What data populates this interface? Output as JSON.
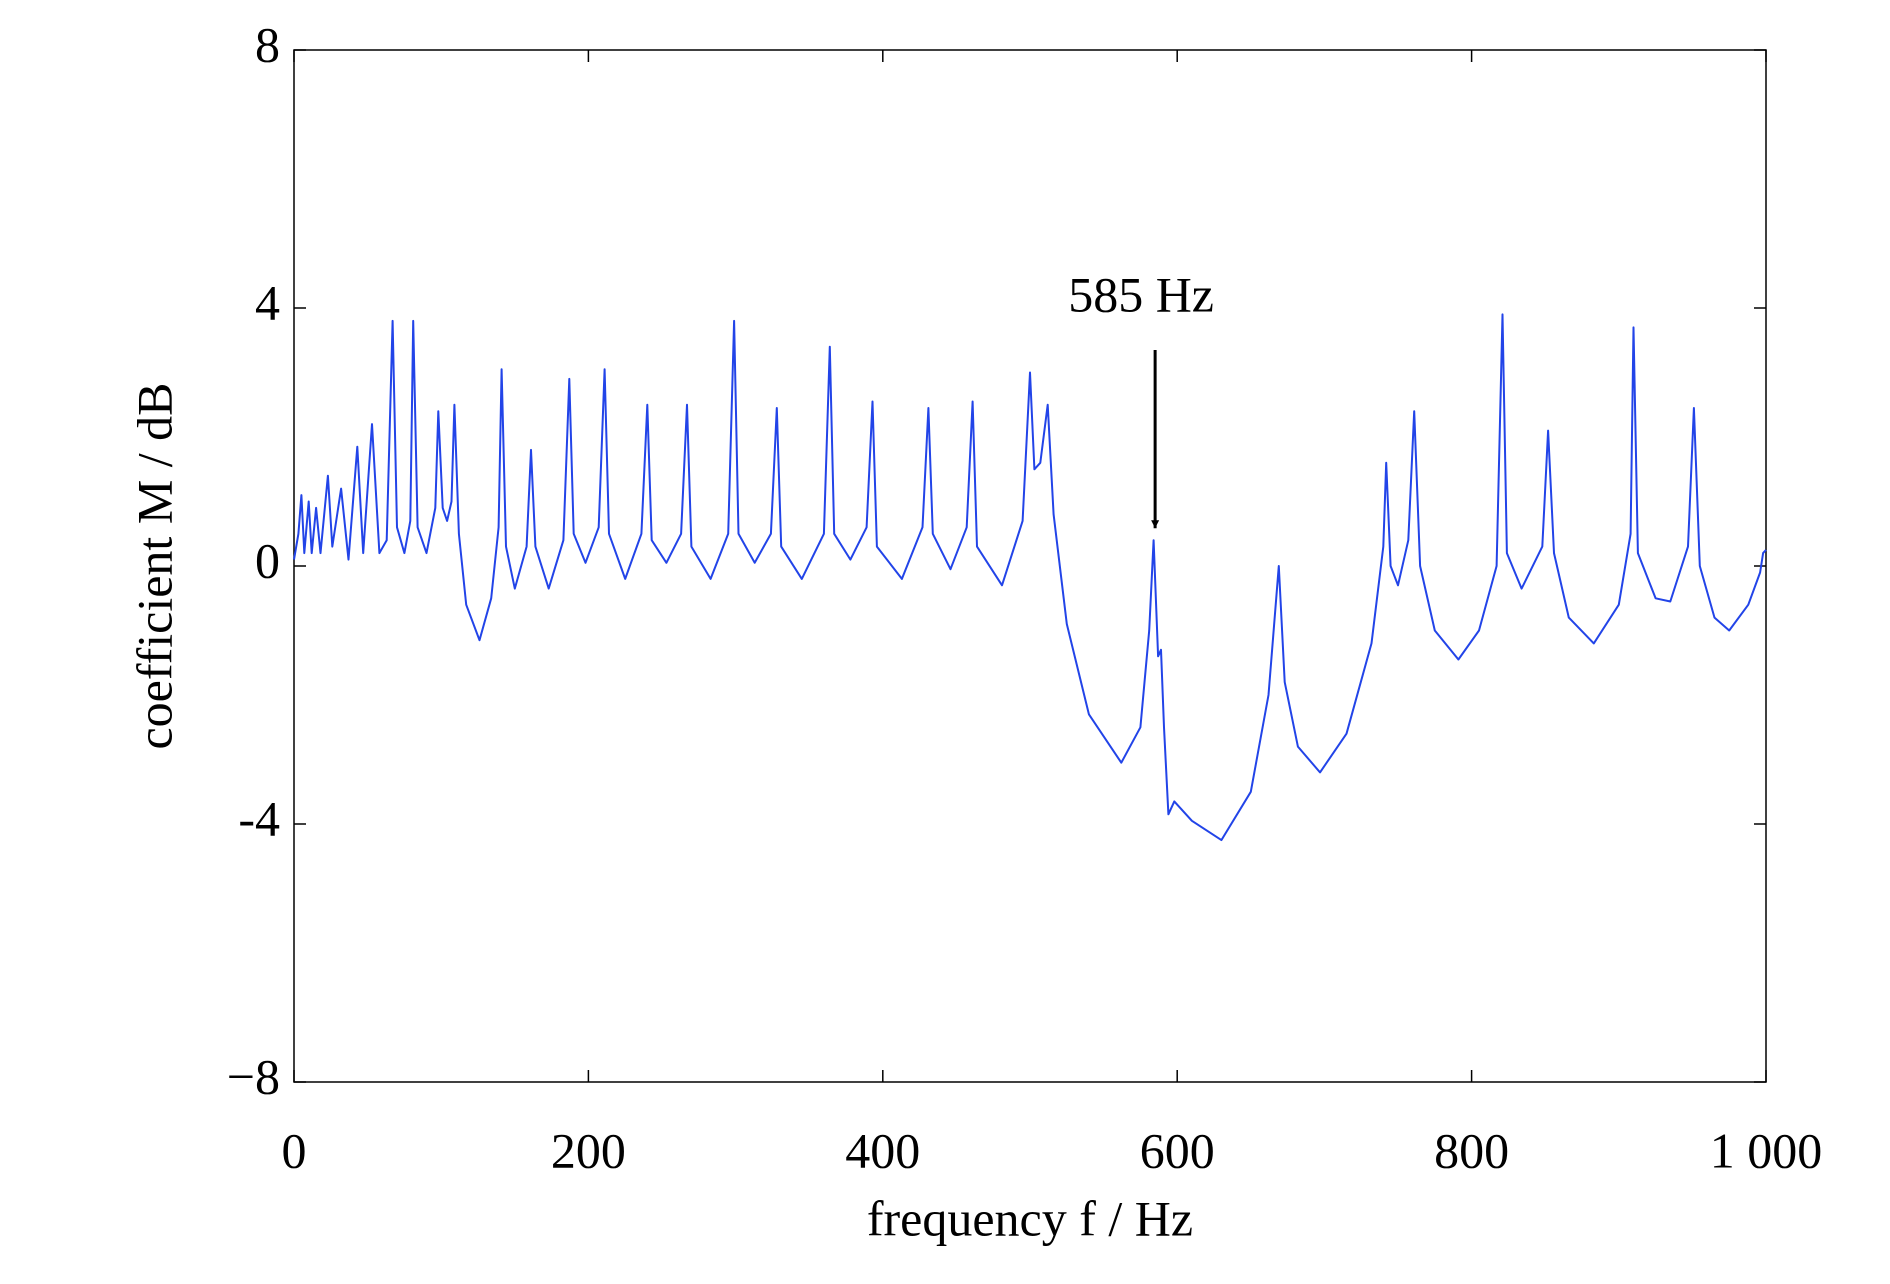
{
  "chart_data": {
    "type": "line",
    "xlabel": "frequency f / Hz",
    "ylabel": "coefficient M / dB",
    "annotation": {
      "text": "585 Hz",
      "x": 585,
      "y": 0.4
    },
    "color": "#2244e8",
    "xlim": [
      0,
      1000
    ],
    "xticks": [
      0,
      200,
      400,
      600,
      800,
      {
        "value": 1000,
        "label": "1 000"
      }
    ],
    "ylim": [
      -8,
      8
    ],
    "yticks": [
      {
        "value": -8,
        "label": "−8"
      },
      -4,
      0,
      4,
      8
    ],
    "grid": false,
    "x": [
      0,
      3,
      5,
      7,
      10,
      12,
      15,
      18,
      23,
      26,
      32,
      37,
      43,
      47,
      53,
      58,
      63,
      67,
      70,
      75,
      79,
      81,
      84,
      90,
      96,
      98,
      101,
      104,
      107,
      109,
      112,
      117,
      126,
      134,
      139,
      141,
      144,
      150,
      158,
      161,
      164,
      173,
      183,
      187,
      190,
      198,
      207,
      211,
      214,
      225,
      236,
      240,
      243,
      253,
      263,
      267,
      270,
      283,
      295,
      299,
      302,
      313,
      324,
      328,
      331,
      345,
      360,
      364,
      367,
      378,
      389,
      393,
      396,
      413,
      427,
      431,
      434,
      446,
      457,
      461,
      464,
      481,
      495,
      500,
      503,
      507,
      512,
      516,
      525,
      540,
      562,
      575,
      581,
      584,
      587,
      589,
      591,
      594,
      598,
      610,
      630,
      650,
      662,
      669,
      673,
      682,
      697,
      715,
      732,
      740,
      742,
      745,
      750,
      757,
      761,
      765,
      775,
      791,
      805,
      817,
      821,
      824,
      834,
      848,
      852,
      856,
      866,
      883,
      900,
      908,
      910,
      913,
      925,
      935,
      947,
      951,
      955,
      965,
      975,
      988,
      996,
      998,
      1000
    ],
    "values": [
      0.1,
      0.5,
      1.1,
      0.2,
      1.0,
      0.2,
      0.9,
      0.2,
      1.4,
      0.3,
      1.2,
      0.1,
      1.85,
      0.2,
      2.2,
      0.2,
      0.4,
      3.8,
      0.6,
      0.2,
      0.7,
      3.8,
      0.6,
      0.2,
      0.9,
      2.4,
      0.9,
      0.7,
      1.0,
      2.5,
      0.5,
      -0.6,
      -1.15,
      -0.5,
      0.6,
      3.05,
      0.3,
      -0.35,
      0.3,
      1.8,
      0.3,
      -0.35,
      0.4,
      2.9,
      0.5,
      0.05,
      0.6,
      3.05,
      0.5,
      -0.2,
      0.5,
      2.5,
      0.4,
      0.05,
      0.5,
      2.5,
      0.3,
      -0.2,
      0.5,
      3.8,
      0.5,
      0.05,
      0.5,
      2.45,
      0.3,
      -0.2,
      0.5,
      3.4,
      0.5,
      0.1,
      0.6,
      2.55,
      0.3,
      -0.2,
      0.6,
      2.45,
      0.5,
      -0.05,
      0.6,
      2.55,
      0.3,
      -0.3,
      0.7,
      3.0,
      1.5,
      1.6,
      2.5,
      0.8,
      -0.9,
      -2.3,
      -3.05,
      -2.5,
      -1.0,
      0.4,
      -1.4,
      -1.3,
      -2.5,
      -3.85,
      -3.65,
      -3.95,
      -4.25,
      -3.5,
      -2.0,
      0.0,
      -1.8,
      -2.8,
      -3.2,
      -2.6,
      -1.2,
      0.3,
      1.6,
      0.0,
      -0.3,
      0.4,
      2.4,
      0.0,
      -1.0,
      -1.45,
      -1.0,
      0.0,
      3.9,
      0.2,
      -0.35,
      0.3,
      2.1,
      0.2,
      -0.8,
      -1.2,
      -0.6,
      0.5,
      3.7,
      0.2,
      -0.5,
      -0.55,
      0.3,
      2.45,
      0.0,
      -0.8,
      -1.0,
      -0.6,
      -0.1,
      0.2,
      0.25
    ]
  }
}
